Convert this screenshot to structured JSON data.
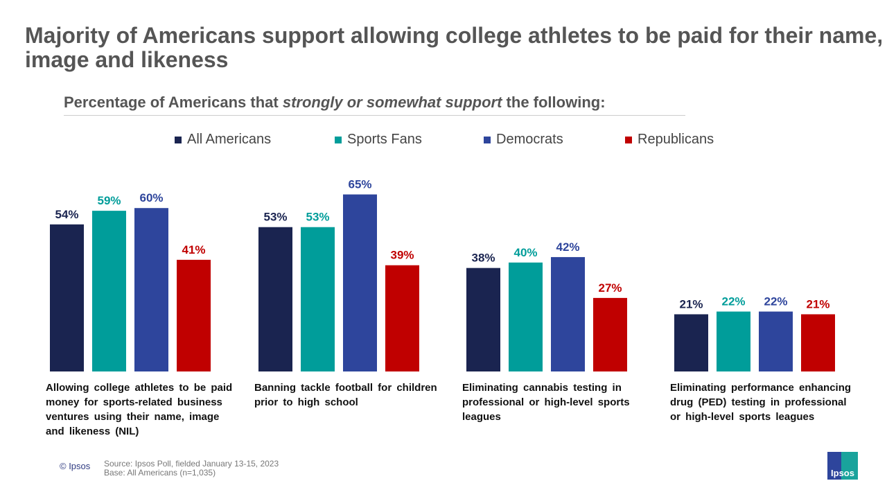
{
  "title": "Majority of Americans support allowing college athletes to be paid for their name, image and likeness",
  "subtitle": {
    "pre": "Percentage of Americans that ",
    "em": "strongly or somewhat support",
    "post": " the following:"
  },
  "footer": {
    "copyright": "© Ipsos",
    "source": "Source: Ipsos Poll, fielded January 13-15, 2023",
    "base": "Base: All Americans (n=1,035)",
    "logo": "Ipsos"
  },
  "chart_data": {
    "type": "bar",
    "categories": [
      "Allowing college athletes to be paid money for sports-related business ventures using their name, image and likeness (NIL)",
      "Banning tackle football for children prior to high school",
      "Eliminating cannabis testing in professional or high-level sports leagues",
      "Eliminating performance enhancing drug (PED) testing in professional or high-level sports leagues"
    ],
    "series": [
      {
        "name": "All Americans",
        "color": "#1a2450",
        "values": [
          54,
          53,
          38,
          21
        ]
      },
      {
        "name": "Sports Fans",
        "color": "#009d9a",
        "values": [
          59,
          53,
          40,
          22
        ]
      },
      {
        "name": "Democrats",
        "color": "#2e459c",
        "values": [
          60,
          65,
          42,
          22
        ]
      },
      {
        "name": "Republicans",
        "color": "#c00000",
        "values": [
          41,
          39,
          27,
          21
        ]
      }
    ],
    "unit": "%",
    "legend": "top",
    "grid": false,
    "ylim": [
      0,
      100
    ]
  }
}
